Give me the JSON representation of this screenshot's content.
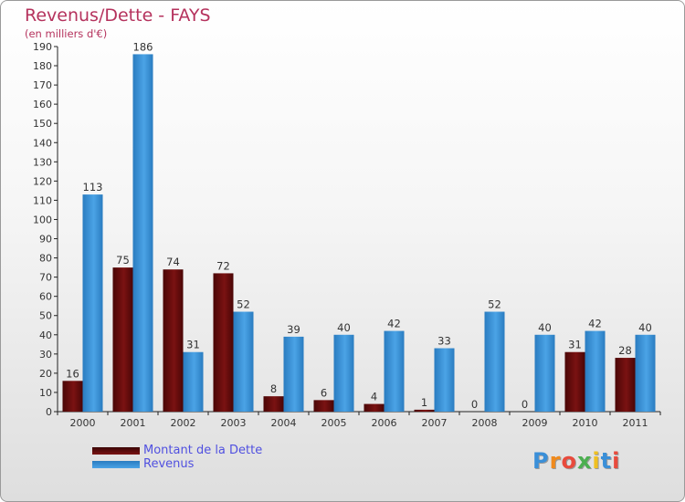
{
  "title": "Revenus/Dette - FAYS",
  "subtitle": "(en milliers d'€)",
  "logo": "Proxiti",
  "colors": {
    "title": "#b5325d",
    "dette": "#7a1212",
    "revenus": "#4ba3e6",
    "legend_text": "#5050e0"
  },
  "chart_data": {
    "type": "bar",
    "title": "Revenus/Dette - FAYS",
    "ylabel": "(en milliers d'€)",
    "categories": [
      "2000",
      "2001",
      "2002",
      "2003",
      "2004",
      "2005",
      "2006",
      "2007",
      "2008",
      "2009",
      "2010",
      "2011"
    ],
    "series": [
      {
        "name": "Montant de la Dette",
        "color": "#7a1212",
        "values": [
          16,
          75,
          74,
          72,
          8,
          6,
          4,
          1,
          0,
          0,
          31,
          28
        ]
      },
      {
        "name": "Revenus",
        "color": "#4ba3e6",
        "values": [
          113,
          186,
          31,
          52,
          39,
          40,
          42,
          33,
          52,
          40,
          42,
          40
        ]
      }
    ],
    "ylim": [
      0,
      190
    ],
    "yticks": [
      0,
      10,
      20,
      30,
      40,
      50,
      60,
      70,
      80,
      90,
      100,
      110,
      120,
      130,
      140,
      150,
      160,
      170,
      180,
      190
    ],
    "grid": false,
    "legend_position": "bottom-left"
  }
}
